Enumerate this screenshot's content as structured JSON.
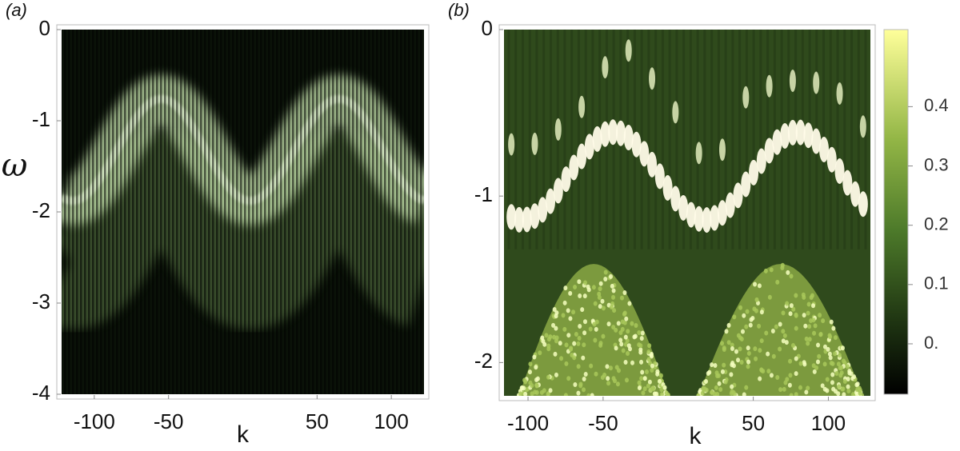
{
  "chart_data": [
    {
      "type": "heatmap",
      "panel_label": "(a)",
      "xlabel": "k",
      "ylabel": "ω",
      "xlim": [
        -122,
        122
      ],
      "ylim": [
        -4,
        0
      ],
      "xticks": [
        -100,
        -50,
        50,
        100
      ],
      "yticks": [
        0,
        -1,
        -2,
        -3,
        -4
      ]
    },
    {
      "type": "heatmap",
      "panel_label": "(b)",
      "xlabel": "k",
      "xlim": [
        -116,
        128
      ],
      "ylim": [
        -2.2,
        0
      ],
      "xticks": [
        -100,
        -50,
        50,
        100
      ],
      "yticks": [
        0,
        -1,
        -2
      ],
      "colorbar": {
        "clim": [
          -0.085,
          0.53
        ],
        "ticks": [
          {
            "value": 0,
            "label": "0."
          },
          0.1,
          0.2,
          0.3,
          0.4
        ]
      }
    }
  ]
}
